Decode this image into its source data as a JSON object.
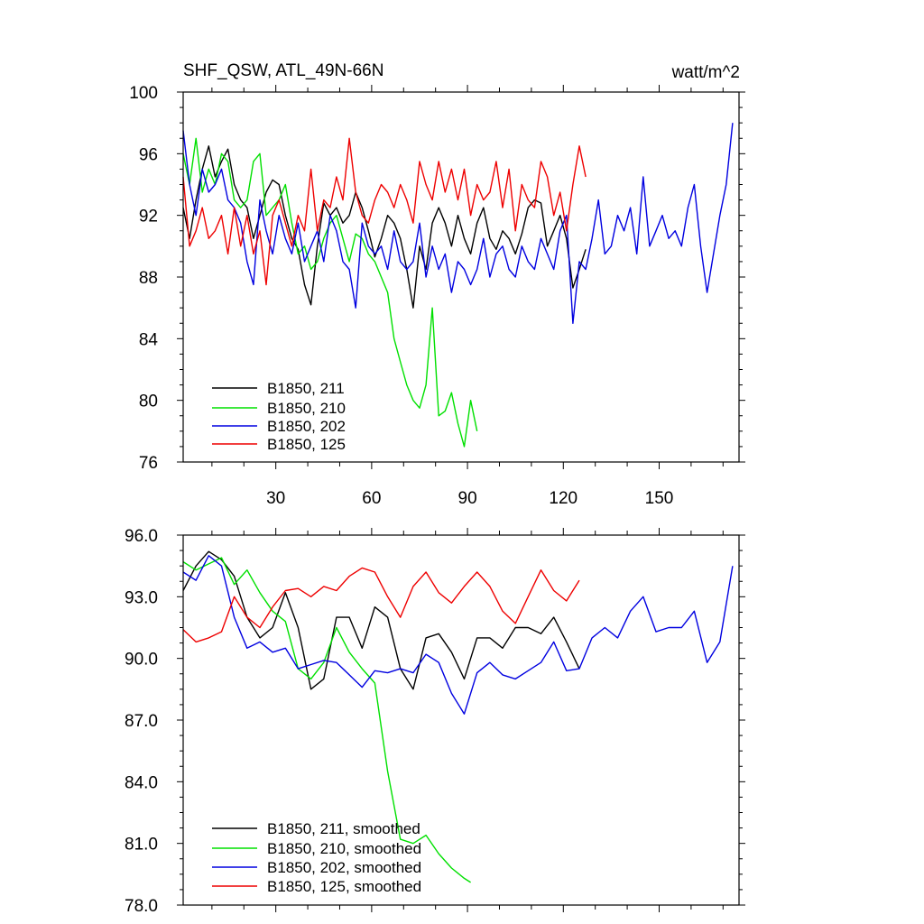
{
  "chart_data": [
    {
      "type": "line",
      "title": "SHF_QSW, ATL_49N-66N",
      "units": "watt/m^2",
      "xlim": [
        1,
        175
      ],
      "ylim": [
        76,
        100
      ],
      "xticks": [
        30,
        60,
        90,
        120,
        150
      ],
      "xtick_labels": [
        "30",
        "60",
        "90",
        "120",
        "150"
      ],
      "yticks": [
        76,
        80,
        84,
        88,
        92,
        96,
        100
      ],
      "ytick_labels": [
        "76",
        "80",
        "84",
        "88",
        "92",
        "96",
        "100"
      ],
      "legend_position": "bottom-left",
      "series": [
        {
          "name": "B1850, 211",
          "color": "#000000",
          "x": [
            1,
            3,
            5,
            7,
            9,
            11,
            13,
            15,
            17,
            19,
            21,
            23,
            25,
            27,
            29,
            31,
            33,
            35,
            37,
            39,
            41,
            43,
            45,
            47,
            49,
            51,
            53,
            55,
            57,
            59,
            61,
            63,
            65,
            67,
            69,
            71,
            73,
            75,
            77,
            79,
            81,
            83,
            85,
            87,
            89,
            91,
            93,
            95,
            97,
            99,
            101,
            103,
            105,
            107,
            109,
            111,
            113,
            115,
            117,
            119,
            121,
            123,
            125,
            127
          ],
          "y": [
            92.5,
            90.5,
            93,
            95,
            96.5,
            94.5,
            95.5,
            96.3,
            94,
            93,
            92.5,
            90.5,
            92,
            93.5,
            94.3,
            94,
            92,
            90.5,
            89.8,
            87.5,
            86.2,
            90,
            92.8,
            92,
            92.5,
            91.5,
            92,
            93.5,
            92.5,
            91,
            89.3,
            90.5,
            92,
            91.5,
            90.5,
            88.5,
            86,
            90,
            88.5,
            91.5,
            92.5,
            91.5,
            90,
            92,
            90.5,
            89.5,
            91.5,
            92.5,
            90.5,
            89.8,
            91,
            90.5,
            89.5,
            90.8,
            92.5,
            93,
            92.8,
            90,
            91,
            92,
            90.5,
            87.3,
            88.5,
            89.8
          ]
        },
        {
          "name": "B1850, 210",
          "color": "#00e000",
          "x": [
            1,
            3,
            5,
            7,
            9,
            11,
            13,
            15,
            17,
            19,
            21,
            23,
            25,
            27,
            29,
            31,
            33,
            35,
            37,
            39,
            41,
            43,
            45,
            47,
            49,
            51,
            53,
            55,
            57,
            59,
            61,
            63,
            65,
            67,
            69,
            71,
            73,
            75,
            77,
            79,
            81,
            83,
            85,
            87,
            89,
            91,
            93
          ],
          "y": [
            96,
            94,
            97,
            93.5,
            95,
            94,
            96,
            95.5,
            93,
            92.5,
            93,
            95.5,
            96,
            92,
            92.5,
            93,
            94,
            91.5,
            89.5,
            90,
            88.5,
            89,
            90.5,
            91.5,
            92,
            90.5,
            89,
            90.8,
            90.5,
            89.5,
            89,
            88,
            87,
            84,
            82.5,
            81,
            80,
            79.5,
            81,
            86,
            79,
            79.3,
            80.5,
            78.5,
            77,
            80,
            78
          ]
        },
        {
          "name": "B1850, 202",
          "color": "#0000e0",
          "x": [
            1,
            3,
            5,
            7,
            9,
            11,
            13,
            15,
            17,
            19,
            21,
            23,
            25,
            27,
            29,
            31,
            33,
            35,
            37,
            39,
            41,
            43,
            45,
            47,
            49,
            51,
            53,
            55,
            57,
            59,
            61,
            63,
            65,
            67,
            69,
            71,
            73,
            75,
            77,
            79,
            81,
            83,
            85,
            87,
            89,
            91,
            93,
            95,
            97,
            99,
            101,
            103,
            105,
            107,
            109,
            111,
            113,
            115,
            117,
            119,
            121,
            123,
            125,
            127,
            129,
            131,
            133,
            135,
            137,
            139,
            141,
            143,
            145,
            147,
            149,
            151,
            153,
            155,
            157,
            159,
            161,
            163,
            165,
            167,
            169,
            171,
            173
          ],
          "y": [
            97.5,
            94,
            92,
            95,
            93.5,
            94,
            95,
            93,
            92.5,
            91.5,
            89,
            87.5,
            93,
            91,
            89.5,
            92,
            90.5,
            89.5,
            91.5,
            89,
            90,
            91,
            89,
            92,
            91,
            89,
            88.5,
            86,
            91.5,
            90,
            89.5,
            90,
            88.5,
            91,
            89,
            88.5,
            89,
            91.5,
            88,
            90,
            88.5,
            89.5,
            87,
            89,
            88.5,
            87.5,
            88.5,
            90.5,
            88,
            89.5,
            90,
            88.5,
            88,
            90,
            89,
            88.5,
            90.5,
            89.5,
            88.5,
            91,
            92,
            85,
            89,
            88.5,
            90.5,
            93,
            89.5,
            90,
            92,
            91,
            92.5,
            89.5,
            94.5,
            90,
            91,
            92,
            90.5,
            91,
            90,
            92.5,
            94,
            90,
            87,
            89.5,
            92,
            94,
            98
          ]
        },
        {
          "name": "B1850, 125",
          "color": "#ee0000",
          "x": [
            1,
            3,
            5,
            7,
            9,
            11,
            13,
            15,
            17,
            19,
            21,
            23,
            25,
            27,
            29,
            31,
            33,
            35,
            37,
            39,
            41,
            43,
            45,
            47,
            49,
            51,
            53,
            55,
            57,
            59,
            61,
            63,
            65,
            67,
            69,
            71,
            73,
            75,
            77,
            79,
            81,
            83,
            85,
            87,
            89,
            91,
            93,
            95,
            97,
            99,
            101,
            103,
            105,
            107,
            109,
            111,
            113,
            115,
            117,
            119,
            121,
            123,
            125,
            127
          ],
          "y": [
            94.5,
            90,
            91,
            92.5,
            90.5,
            91,
            92,
            89.5,
            92.5,
            90,
            92,
            89.5,
            91,
            87.5,
            92,
            93,
            91.5,
            90,
            92,
            91,
            95,
            91,
            93,
            92.5,
            94.5,
            93,
            97,
            93.5,
            92,
            91.5,
            93,
            94,
            93.5,
            92.5,
            94,
            93,
            91.5,
            95.5,
            94,
            93,
            95.5,
            93.5,
            95,
            93,
            95,
            92,
            94,
            93,
            93.5,
            95.5,
            92.5,
            95,
            91,
            94,
            93,
            92.5,
            95.5,
            94.5,
            92,
            93.5,
            91,
            94,
            96.5,
            94.5
          ]
        }
      ]
    },
    {
      "type": "line",
      "title": "",
      "xlim": [
        1,
        175
      ],
      "ylim": [
        78,
        96
      ],
      "yticks": [
        78,
        81,
        84,
        87,
        90,
        93,
        96
      ],
      "ytick_labels": [
        "78.0",
        "81.0",
        "84.0",
        "87.0",
        "90.0",
        "93.0",
        "96.0"
      ],
      "legend_position": "bottom-left",
      "series": [
        {
          "name": "B1850, 211, smoothed",
          "color": "#000000",
          "x": [
            1,
            5,
            9,
            13,
            17,
            21,
            25,
            29,
            33,
            37,
            41,
            45,
            49,
            53,
            57,
            61,
            65,
            69,
            73,
            77,
            81,
            85,
            89,
            93,
            97,
            101,
            105,
            109,
            113,
            117,
            121,
            125
          ],
          "y": [
            93.3,
            94.5,
            95.2,
            94.8,
            94,
            92,
            91,
            91.5,
            93.2,
            91.5,
            88.5,
            89,
            92,
            92,
            90.5,
            92.5,
            92,
            89.5,
            88.5,
            91,
            91.2,
            90.3,
            89,
            91,
            91,
            90.5,
            91.5,
            91.5,
            91.2,
            92,
            90.8,
            89.5
          ]
        },
        {
          "name": "B1850, 210, smoothed",
          "color": "#00e000",
          "x": [
            1,
            5,
            9,
            13,
            17,
            21,
            25,
            29,
            33,
            37,
            41,
            45,
            49,
            53,
            57,
            61,
            65,
            69,
            73,
            77,
            81,
            85,
            89,
            91
          ],
          "y": [
            94.7,
            94.3,
            94.6,
            94.9,
            93.6,
            94.3,
            93.2,
            92.3,
            91.8,
            89.5,
            89,
            89.8,
            91.5,
            90.3,
            89.5,
            88.8,
            84.5,
            81.2,
            81,
            81.4,
            80.5,
            79.8,
            79.3,
            79.1
          ]
        },
        {
          "name": "B1850, 202, smoothed",
          "color": "#0000e0",
          "x": [
            1,
            5,
            9,
            13,
            17,
            21,
            25,
            29,
            33,
            37,
            41,
            45,
            49,
            53,
            57,
            61,
            65,
            69,
            73,
            77,
            81,
            85,
            89,
            93,
            97,
            101,
            105,
            109,
            113,
            117,
            121,
            125,
            129,
            133,
            137,
            141,
            145,
            149,
            153,
            157,
            161,
            165,
            169,
            173
          ],
          "y": [
            94.2,
            93.8,
            95,
            94.5,
            92,
            90.5,
            90.8,
            90.3,
            90.5,
            89.5,
            89.7,
            89.9,
            89.8,
            89.2,
            88.6,
            89.4,
            89.3,
            89.5,
            89.3,
            90.2,
            89.8,
            88.3,
            87.3,
            89.3,
            89.8,
            89.2,
            89,
            89.4,
            89.8,
            90.8,
            89.4,
            89.5,
            91,
            91.5,
            91,
            92.3,
            93,
            91.3,
            91.5,
            91.5,
            92.3,
            89.8,
            90.8,
            94.5
          ]
        },
        {
          "name": "B1850, 125, smoothed",
          "color": "#ee0000",
          "x": [
            1,
            5,
            9,
            13,
            17,
            21,
            25,
            29,
            33,
            37,
            41,
            45,
            49,
            53,
            57,
            61,
            65,
            69,
            73,
            77,
            81,
            85,
            89,
            93,
            97,
            101,
            105,
            109,
            113,
            117,
            121,
            125
          ],
          "y": [
            91.4,
            90.8,
            91,
            91.3,
            93,
            92,
            91.5,
            92.5,
            93.3,
            93.4,
            93,
            93.5,
            93.3,
            94,
            94.4,
            94.2,
            93,
            92,
            93.5,
            94.2,
            93.2,
            92.7,
            93.5,
            94.2,
            93.5,
            92.3,
            91.7,
            93,
            94.3,
            93.3,
            92.8,
            93.8
          ]
        }
      ]
    }
  ]
}
